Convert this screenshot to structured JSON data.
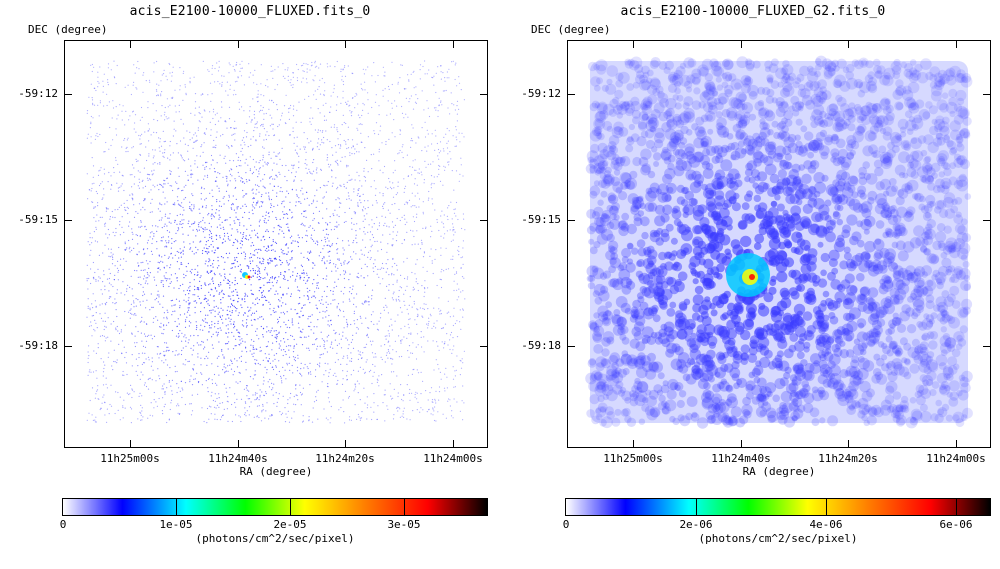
{
  "panels": [
    {
      "title": "acis_E2100-10000_FLUXED.fits_0",
      "ylabel": "DEC (degree)",
      "xlabel": "RA (degree)",
      "yticks": [
        "-59:12",
        "-59:15",
        "-59:18"
      ],
      "xticks": [
        "11h25m00s",
        "11h24m40s",
        "11h24m20s",
        "11h24m00s"
      ],
      "colorbar": {
        "ticks": [
          "0",
          "1e-05",
          "2e-05",
          "3e-05"
        ],
        "units": "(photons/cm^2/sec/pixel)"
      }
    },
    {
      "title": "acis_E2100-10000_FLUXED_G2.fits_0",
      "ylabel": "DEC (degree)",
      "xlabel": "RA (degree)",
      "yticks": [
        "-59:12",
        "-59:15",
        "-59:18"
      ],
      "xticks": [
        "11h25m00s",
        "11h24m40s",
        "11h24m20s",
        "11h24m00s"
      ],
      "colorbar": {
        "ticks": [
          "0",
          "2e-06",
          "4e-06",
          "6e-06"
        ],
        "units": "(photons/cm^2/sec/pixel)"
      }
    }
  ],
  "colors": {
    "colormap": [
      "#ffffff",
      "#0000ff",
      "#00ffff",
      "#00ff00",
      "#ffff00",
      "#ff8000",
      "#ff0000",
      "#000000"
    ],
    "image_blue": "#3a3aff"
  }
}
